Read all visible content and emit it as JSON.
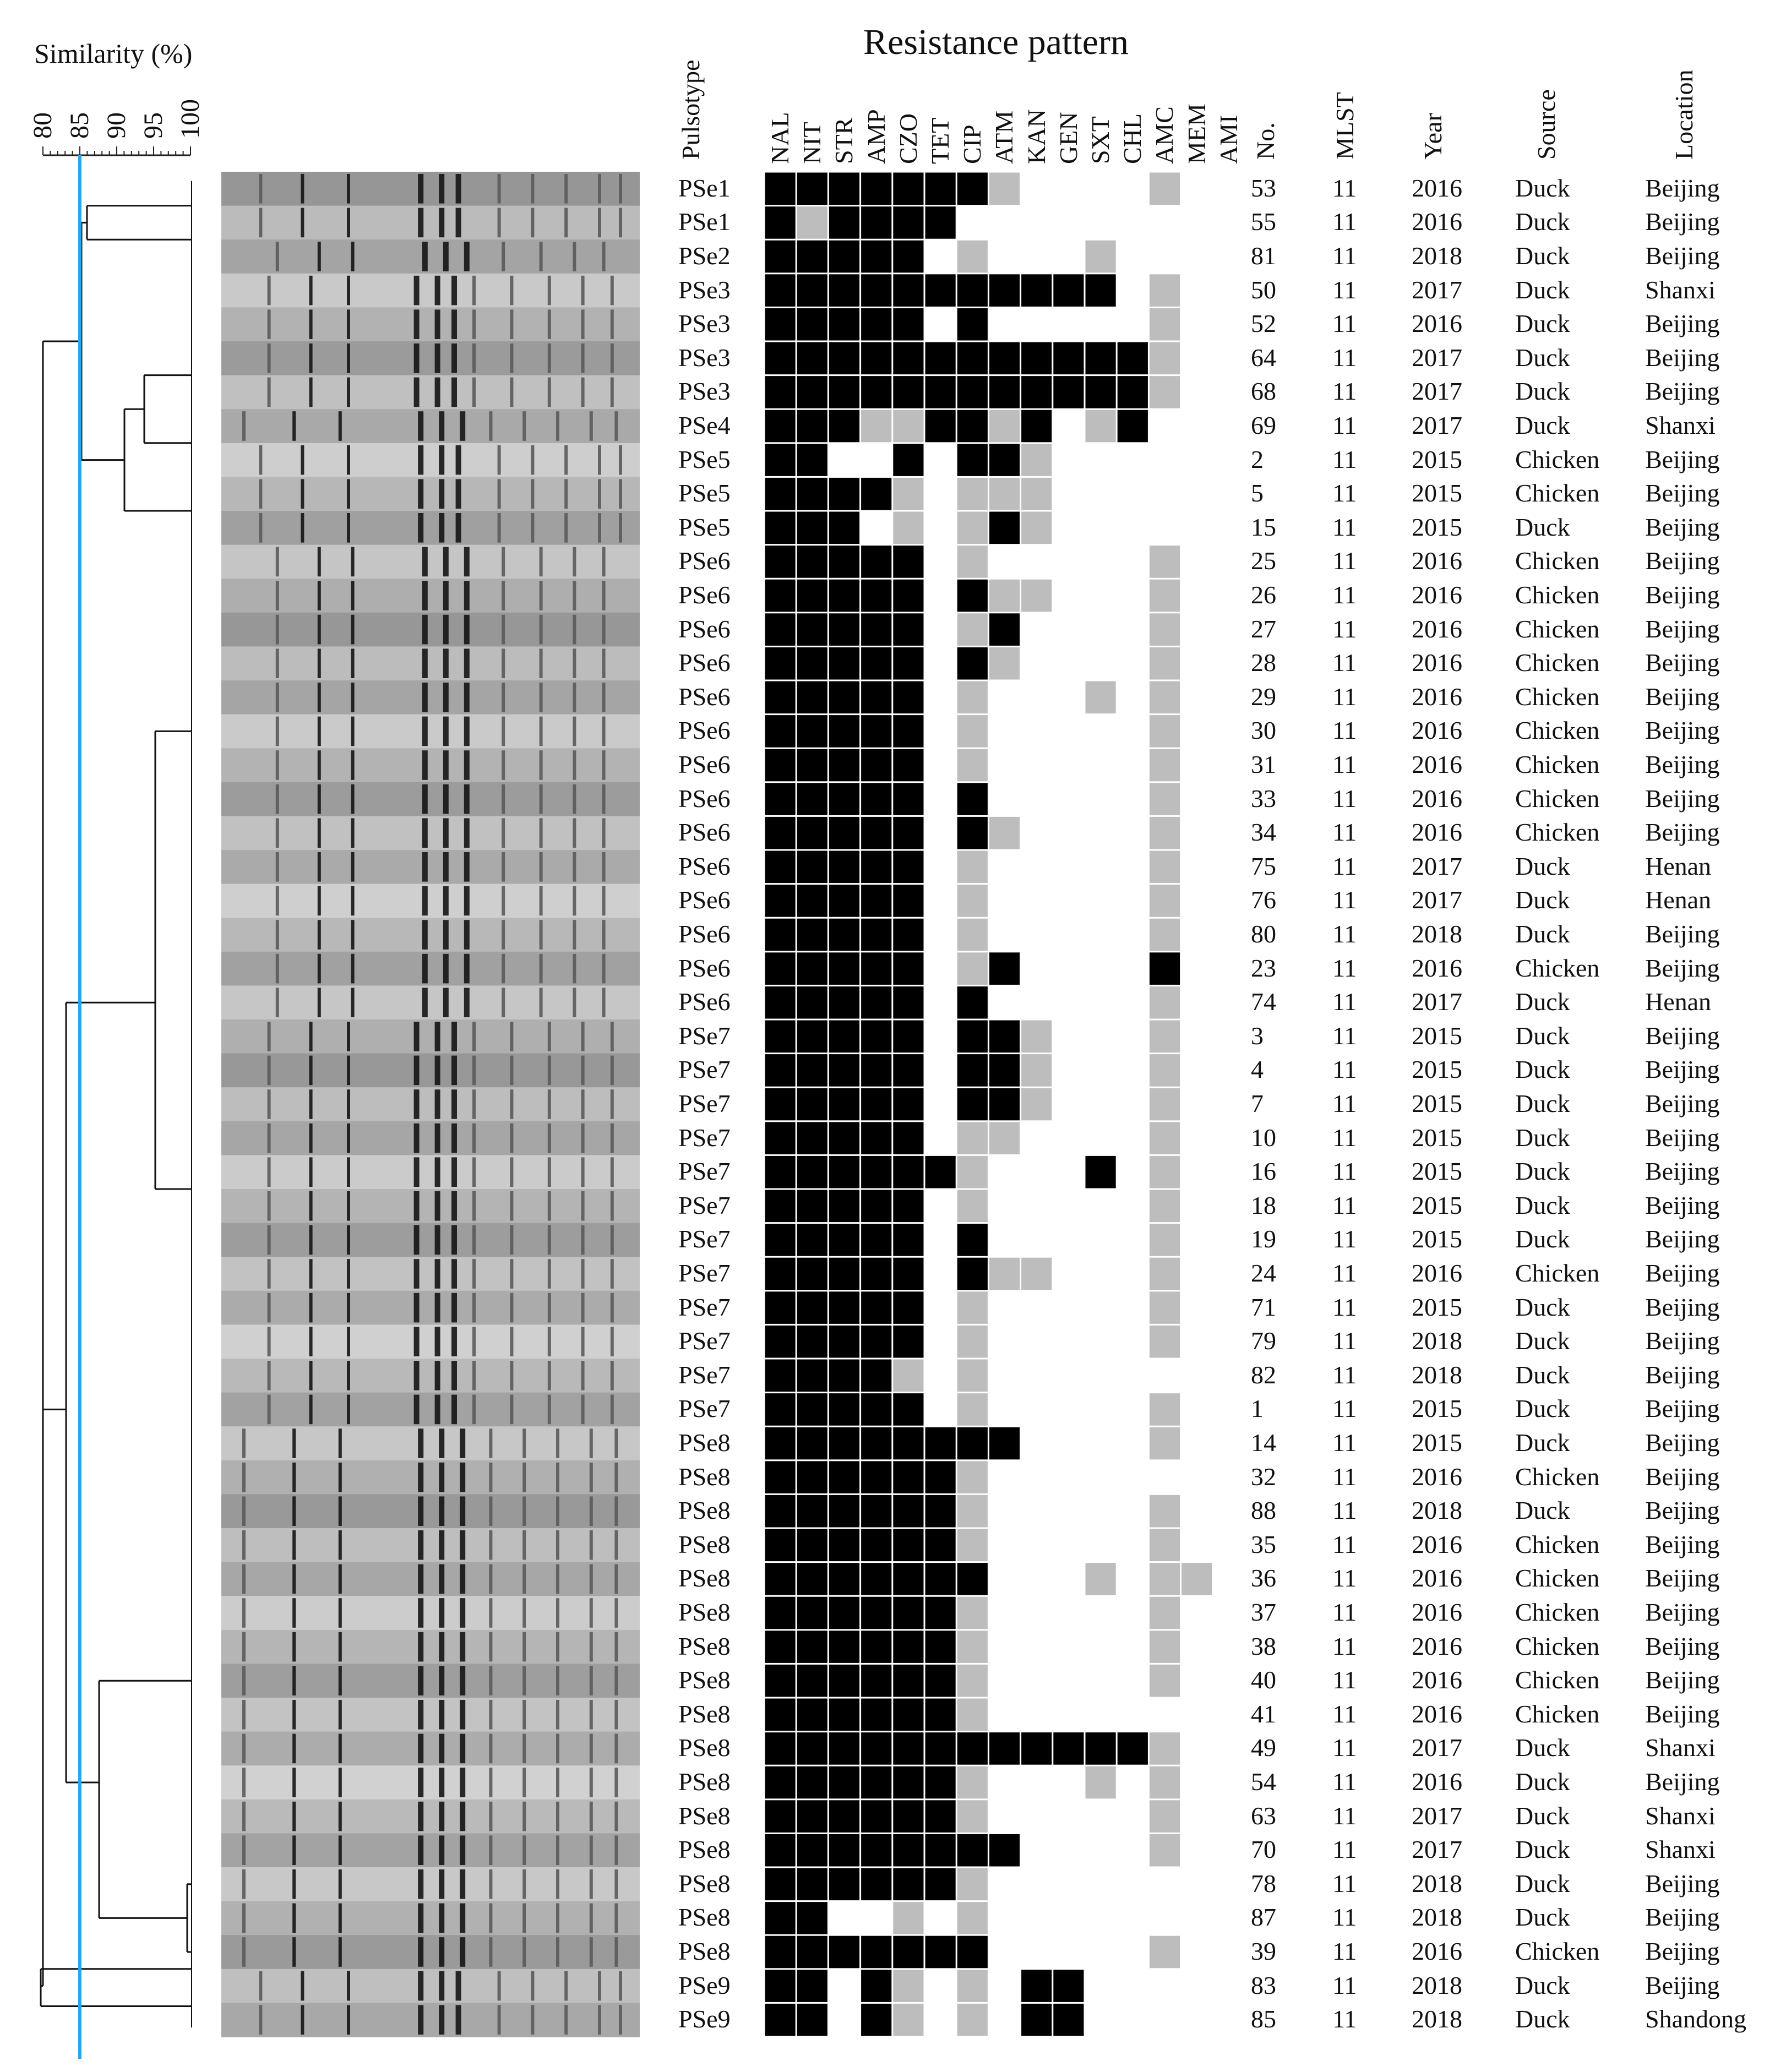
{
  "similarity_axis": {
    "label": "Similarity (%)",
    "ticks": [
      "80",
      "85",
      "90",
      "95",
      "100"
    ],
    "cutoff": 85
  },
  "resistance_title": "Resistance pattern",
  "headers": {
    "pulsotype": "Pulsotype",
    "antibiotics": [
      "NAL",
      "NIT",
      "STR",
      "AMP",
      "CZO",
      "TET",
      "CIP",
      "ATM",
      "KAN",
      "GEN",
      "SXT",
      "CHL",
      "AMC",
      "MEM",
      "AMI"
    ],
    "no": "No.",
    "mlst": "MLST",
    "year": "Year",
    "source": "Source",
    "location": "Location"
  },
  "legend_codes": {
    "R": "#000000",
    "I": "#bdbdbd",
    "S": "#ffffff"
  },
  "rows": [
    {
      "pulsotype": "PSe1",
      "no": "53",
      "mlst": "11",
      "year": "2016",
      "source": "Duck",
      "location": "Beijing",
      "pattern": "RRRRRRRI....I.."
    },
    {
      "pulsotype": "PSe1",
      "no": "55",
      "mlst": "11",
      "year": "2016",
      "source": "Duck",
      "location": "Beijing",
      "pattern": "RIRRRR........."
    },
    {
      "pulsotype": "PSe2",
      "no": "81",
      "mlst": "11",
      "year": "2018",
      "source": "Duck",
      "location": "Beijing",
      "pattern": "RRRRR.I...I...."
    },
    {
      "pulsotype": "PSe3",
      "no": "50",
      "mlst": "11",
      "year": "2017",
      "source": "Duck",
      "location": "Shanxi",
      "pattern": "RRRRRRRRRRR.I.."
    },
    {
      "pulsotype": "PSe3",
      "no": "52",
      "mlst": "11",
      "year": "2016",
      "source": "Duck",
      "location": "Beijing",
      "pattern": "RRRRR.R.....I.."
    },
    {
      "pulsotype": "PSe3",
      "no": "64",
      "mlst": "11",
      "year": "2017",
      "source": "Duck",
      "location": "Beijing",
      "pattern": "RRRRRRRRRRRRI.."
    },
    {
      "pulsotype": "PSe3",
      "no": "68",
      "mlst": "11",
      "year": "2017",
      "source": "Duck",
      "location": "Beijing",
      "pattern": "RRRRRRRRRRRRI.."
    },
    {
      "pulsotype": "PSe4",
      "no": "69",
      "mlst": "11",
      "year": "2017",
      "source": "Duck",
      "location": "Shanxi",
      "pattern": "RRRIIRRIR.IR..."
    },
    {
      "pulsotype": "PSe5",
      "no": "2",
      "mlst": "11",
      "year": "2015",
      "source": "Chicken",
      "location": "Beijing",
      "pattern": "RR..R.RRI......"
    },
    {
      "pulsotype": "PSe5",
      "no": "5",
      "mlst": "11",
      "year": "2015",
      "source": "Chicken",
      "location": "Beijing",
      "pattern": "RRRRI.III......"
    },
    {
      "pulsotype": "PSe5",
      "no": "15",
      "mlst": "11",
      "year": "2015",
      "source": "Duck",
      "location": "Beijing",
      "pattern": "RRR.I.IRI......"
    },
    {
      "pulsotype": "PSe6",
      "no": "25",
      "mlst": "11",
      "year": "2016",
      "source": "Chicken",
      "location": "Beijing",
      "pattern": "RRRRR.I.....I.."
    },
    {
      "pulsotype": "PSe6",
      "no": "26",
      "mlst": "11",
      "year": "2016",
      "source": "Chicken",
      "location": "Beijing",
      "pattern": "RRRRR.RII...I.."
    },
    {
      "pulsotype": "PSe6",
      "no": "27",
      "mlst": "11",
      "year": "2016",
      "source": "Chicken",
      "location": "Beijing",
      "pattern": "RRRRR.IR....I.."
    },
    {
      "pulsotype": "PSe6",
      "no": "28",
      "mlst": "11",
      "year": "2016",
      "source": "Chicken",
      "location": "Beijing",
      "pattern": "RRRRR.RI....I.."
    },
    {
      "pulsotype": "PSe6",
      "no": "29",
      "mlst": "11",
      "year": "2016",
      "source": "Chicken",
      "location": "Beijing",
      "pattern": "RRRRR.I...I.I.."
    },
    {
      "pulsotype": "PSe6",
      "no": "30",
      "mlst": "11",
      "year": "2016",
      "source": "Chicken",
      "location": "Beijing",
      "pattern": "RRRRR.I.....I.."
    },
    {
      "pulsotype": "PSe6",
      "no": "31",
      "mlst": "11",
      "year": "2016",
      "source": "Chicken",
      "location": "Beijing",
      "pattern": "RRRRR.I.....I.."
    },
    {
      "pulsotype": "PSe6",
      "no": "33",
      "mlst": "11",
      "year": "2016",
      "source": "Chicken",
      "location": "Beijing",
      "pattern": "RRRRR.R.....I.."
    },
    {
      "pulsotype": "PSe6",
      "no": "34",
      "mlst": "11",
      "year": "2016",
      "source": "Chicken",
      "location": "Beijing",
      "pattern": "RRRRR.RI....I.."
    },
    {
      "pulsotype": "PSe6",
      "no": "75",
      "mlst": "11",
      "year": "2017",
      "source": "Duck",
      "location": "Henan",
      "pattern": "RRRRR.I.....I.."
    },
    {
      "pulsotype": "PSe6",
      "no": "76",
      "mlst": "11",
      "year": "2017",
      "source": "Duck",
      "location": "Henan",
      "pattern": "RRRRR.I.....I.."
    },
    {
      "pulsotype": "PSe6",
      "no": "80",
      "mlst": "11",
      "year": "2018",
      "source": "Duck",
      "location": "Beijing",
      "pattern": "RRRRR.I.....I.."
    },
    {
      "pulsotype": "PSe6",
      "no": "23",
      "mlst": "11",
      "year": "2016",
      "source": "Chicken",
      "location": "Beijing",
      "pattern": "RRRRR.IR....R.."
    },
    {
      "pulsotype": "PSe6",
      "no": "74",
      "mlst": "11",
      "year": "2017",
      "source": "Duck",
      "location": "Henan",
      "pattern": "RRRRR.R.....I.."
    },
    {
      "pulsotype": "PSe7",
      "no": "3",
      "mlst": "11",
      "year": "2015",
      "source": "Duck",
      "location": "Beijing",
      "pattern": "RRRRR.RRI...I.."
    },
    {
      "pulsotype": "PSe7",
      "no": "4",
      "mlst": "11",
      "year": "2015",
      "source": "Duck",
      "location": "Beijing",
      "pattern": "RRRRR.RRI...I.."
    },
    {
      "pulsotype": "PSe7",
      "no": "7",
      "mlst": "11",
      "year": "2015",
      "source": "Duck",
      "location": "Beijing",
      "pattern": "RRRRR.RRI...I.."
    },
    {
      "pulsotype": "PSe7",
      "no": "10",
      "mlst": "11",
      "year": "2015",
      "source": "Duck",
      "location": "Beijing",
      "pattern": "RRRRR.II....I.."
    },
    {
      "pulsotype": "PSe7",
      "no": "16",
      "mlst": "11",
      "year": "2015",
      "source": "Duck",
      "location": "Beijing",
      "pattern": "RRRRRRI...R.I.."
    },
    {
      "pulsotype": "PSe7",
      "no": "18",
      "mlst": "11",
      "year": "2015",
      "source": "Duck",
      "location": "Beijing",
      "pattern": "RRRRR.I.....I.."
    },
    {
      "pulsotype": "PSe7",
      "no": "19",
      "mlst": "11",
      "year": "2015",
      "source": "Duck",
      "location": "Beijing",
      "pattern": "RRRRR.R.....I.."
    },
    {
      "pulsotype": "PSe7",
      "no": "24",
      "mlst": "11",
      "year": "2016",
      "source": "Chicken",
      "location": "Beijing",
      "pattern": "RRRRR.RII...I.."
    },
    {
      "pulsotype": "PSe7",
      "no": "71",
      "mlst": "11",
      "year": "2015",
      "source": "Duck",
      "location": "Beijing",
      "pattern": "RRRRR.I.....I.."
    },
    {
      "pulsotype": "PSe7",
      "no": "79",
      "mlst": "11",
      "year": "2018",
      "source": "Duck",
      "location": "Beijing",
      "pattern": "RRRRR.I.....I.."
    },
    {
      "pulsotype": "PSe7",
      "no": "82",
      "mlst": "11",
      "year": "2018",
      "source": "Duck",
      "location": "Beijing",
      "pattern": "RRRRI.I........"
    },
    {
      "pulsotype": "PSe7",
      "no": "1",
      "mlst": "11",
      "year": "2015",
      "source": "Duck",
      "location": "Beijing",
      "pattern": "RRRRR.I.....I.."
    },
    {
      "pulsotype": "PSe8",
      "no": "14",
      "mlst": "11",
      "year": "2015",
      "source": "Duck",
      "location": "Beijing",
      "pattern": "RRRRRRRR....I.."
    },
    {
      "pulsotype": "PSe8",
      "no": "32",
      "mlst": "11",
      "year": "2016",
      "source": "Chicken",
      "location": "Beijing",
      "pattern": "RRRRRRI........"
    },
    {
      "pulsotype": "PSe8",
      "no": "88",
      "mlst": "11",
      "year": "2018",
      "source": "Duck",
      "location": "Beijing",
      "pattern": "RRRRRRI.....I.."
    },
    {
      "pulsotype": "PSe8",
      "no": "35",
      "mlst": "11",
      "year": "2016",
      "source": "Chicken",
      "location": "Beijing",
      "pattern": "RRRRRRI.....I.."
    },
    {
      "pulsotype": "PSe8",
      "no": "36",
      "mlst": "11",
      "year": "2016",
      "source": "Chicken",
      "location": "Beijing",
      "pattern": "RRRRRRR...I.II."
    },
    {
      "pulsotype": "PSe8",
      "no": "37",
      "mlst": "11",
      "year": "2016",
      "source": "Chicken",
      "location": "Beijing",
      "pattern": "RRRRRRI.....I.."
    },
    {
      "pulsotype": "PSe8",
      "no": "38",
      "mlst": "11",
      "year": "2016",
      "source": "Chicken",
      "location": "Beijing",
      "pattern": "RRRRRRI.....I.."
    },
    {
      "pulsotype": "PSe8",
      "no": "40",
      "mlst": "11",
      "year": "2016",
      "source": "Chicken",
      "location": "Beijing",
      "pattern": "RRRRRRI.....I.."
    },
    {
      "pulsotype": "PSe8",
      "no": "41",
      "mlst": "11",
      "year": "2016",
      "source": "Chicken",
      "location": "Beijing",
      "pattern": "RRRRRRI........"
    },
    {
      "pulsotype": "PSe8",
      "no": "49",
      "mlst": "11",
      "year": "2017",
      "source": "Duck",
      "location": "Shanxi",
      "pattern": "RRRRRRRRRRRRI.."
    },
    {
      "pulsotype": "PSe8",
      "no": "54",
      "mlst": "11",
      "year": "2016",
      "source": "Duck",
      "location": "Beijing",
      "pattern": "RRRRRRI...I.I.."
    },
    {
      "pulsotype": "PSe8",
      "no": "63",
      "mlst": "11",
      "year": "2017",
      "source": "Duck",
      "location": "Shanxi",
      "pattern": "RRRRRRI.....I.."
    },
    {
      "pulsotype": "PSe8",
      "no": "70",
      "mlst": "11",
      "year": "2017",
      "source": "Duck",
      "location": "Shanxi",
      "pattern": "RRRRRRRR....I.."
    },
    {
      "pulsotype": "PSe8",
      "no": "78",
      "mlst": "11",
      "year": "2018",
      "source": "Duck",
      "location": "Beijing",
      "pattern": "RRRRRRI........"
    },
    {
      "pulsotype": "PSe8",
      "no": "87",
      "mlst": "11",
      "year": "2018",
      "source": "Duck",
      "location": "Beijing",
      "pattern": "RR..I.I........"
    },
    {
      "pulsotype": "PSe8",
      "no": "39",
      "mlst": "11",
      "year": "2016",
      "source": "Chicken",
      "location": "Beijing",
      "pattern": "RRRRRRR.....I.."
    },
    {
      "pulsotype": "PSe9",
      "no": "83",
      "mlst": "11",
      "year": "2018",
      "source": "Duck",
      "location": "Beijing",
      "pattern": "RR.RI.I.RR....."
    },
    {
      "pulsotype": "PSe9",
      "no": "85",
      "mlst": "11",
      "year": "2018",
      "source": "Duck",
      "location": "Shandong",
      "pattern": "RR.RI.I.RR....."
    }
  ]
}
